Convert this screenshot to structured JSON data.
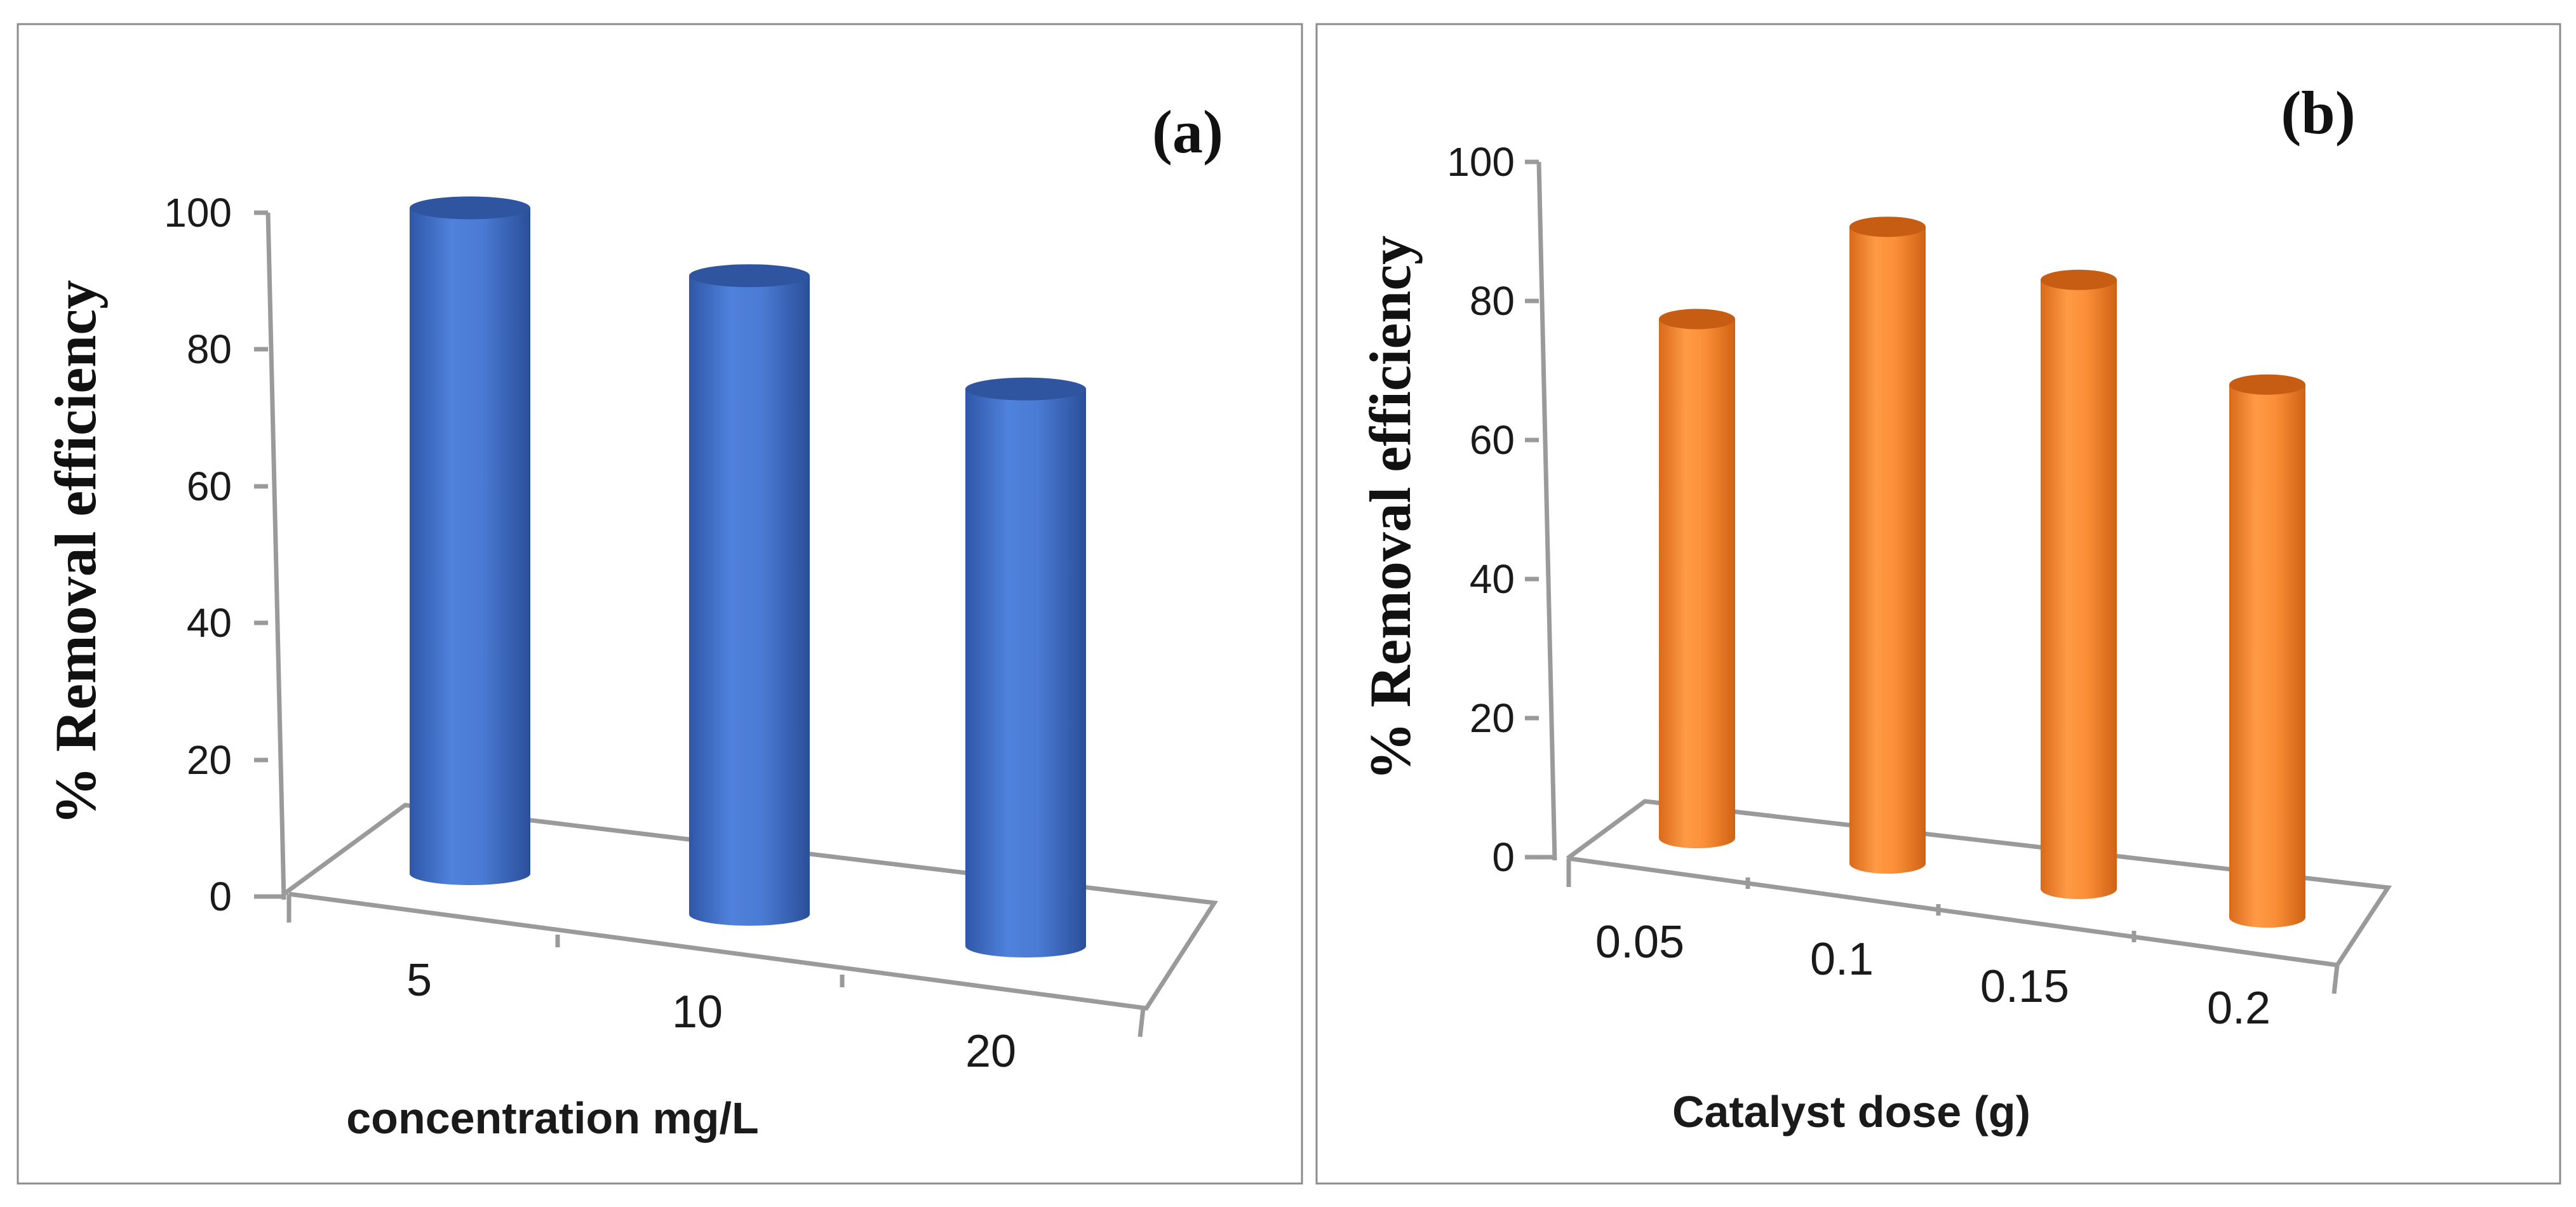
{
  "chart_data": [
    {
      "type": "bar",
      "style": "3d-cylinder",
      "panel_label": "(a)",
      "categories": [
        "5",
        "10",
        "20"
      ],
      "values": [
        98,
        94,
        82
      ],
      "xlabel": "concentration mg/L",
      "ylabel": "% Removal efficiency",
      "ylim": [
        0,
        100
      ],
      "yticks": [
        "0",
        "20",
        "40",
        "60",
        "80",
        "100"
      ],
      "color": "#4472C4",
      "grid": false,
      "legend": "none"
    },
    {
      "type": "bar",
      "style": "3d-cylinder",
      "panel_label": "(b)",
      "categories": [
        "0.05",
        "0.1",
        "0.15",
        "0.2"
      ],
      "values": [
        75,
        92,
        88,
        77
      ],
      "xlabel": "Catalyst dose (g)",
      "ylabel": "% Removal efficiency",
      "ylim": [
        0,
        100
      ],
      "yticks": [
        "0",
        "20",
        "40",
        "60",
        "80",
        "100"
      ],
      "color": "#F28A30",
      "grid": false,
      "legend": "none"
    }
  ]
}
